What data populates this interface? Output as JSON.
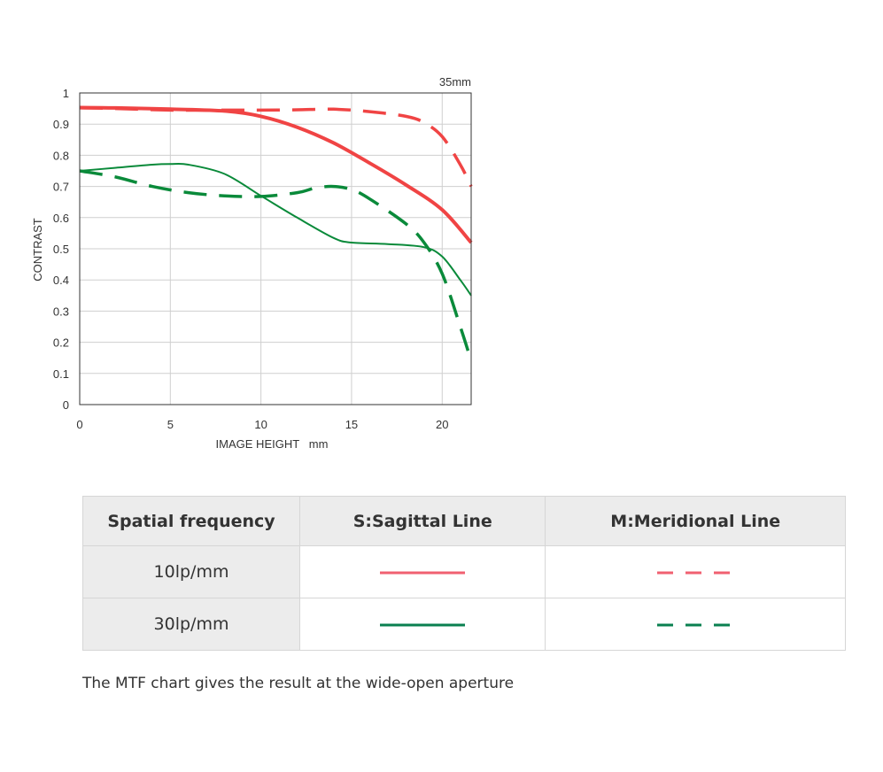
{
  "chart_data": {
    "type": "line",
    "title": "35mm",
    "xlabel": "IMAGE HEIGHT   mm",
    "ylabel": "CONTRAST",
    "xlim": [
      0,
      21.6
    ],
    "ylim": [
      0,
      1
    ],
    "x_ticks": [
      "0",
      "5",
      "10",
      "15",
      "20"
    ],
    "y_ticks": [
      "0",
      "0.1",
      "0.2",
      "0.3",
      "0.4",
      "0.5",
      "0.6",
      "0.7",
      "0.8",
      "0.9",
      "1"
    ],
    "grid": true,
    "series": [
      {
        "name": "10lp/mm S:Sagittal Line",
        "color": "#f04444",
        "dash": false,
        "x": [
          0,
          2,
          5,
          8,
          10,
          12,
          14,
          16,
          18,
          20,
          21.6
        ],
        "y": [
          0.953,
          0.952,
          0.948,
          0.942,
          0.925,
          0.89,
          0.84,
          0.775,
          0.705,
          0.625,
          0.52
        ]
      },
      {
        "name": "10lp/mm M:Meridional Line",
        "color": "#f04444",
        "dash": true,
        "x": [
          0,
          2,
          5,
          8,
          10,
          12,
          14,
          16,
          18,
          19,
          20,
          21,
          21.6
        ],
        "y": [
          0.952,
          0.95,
          0.945,
          0.945,
          0.945,
          0.946,
          0.948,
          0.94,
          0.925,
          0.905,
          0.86,
          0.77,
          0.7
        ]
      },
      {
        "name": "30lp/mm S:Sagittal Line",
        "color": "#0a8a3a",
        "dash": false,
        "x": [
          0,
          2,
          4,
          5,
          6,
          8,
          10,
          12,
          14,
          15,
          17,
          19,
          20,
          21,
          21.6
        ],
        "y": [
          0.75,
          0.76,
          0.77,
          0.772,
          0.77,
          0.74,
          0.67,
          0.6,
          0.535,
          0.52,
          0.515,
          0.505,
          0.475,
          0.4,
          0.35
        ]
      },
      {
        "name": "30lp/mm M:Meridional Line",
        "color": "#0a8a3a",
        "dash": true,
        "x": [
          0,
          2,
          4,
          6,
          8,
          10,
          12,
          13,
          14,
          15,
          16,
          18,
          19,
          20,
          21,
          21.6
        ],
        "y": [
          0.75,
          0.73,
          0.7,
          0.68,
          0.67,
          0.668,
          0.68,
          0.695,
          0.7,
          0.69,
          0.66,
          0.58,
          0.52,
          0.42,
          0.25,
          0.14
        ]
      }
    ]
  },
  "table": {
    "headers": [
      "Spatial frequency",
      "S:Sagittal Line",
      "M:Meridional Line"
    ],
    "rows": [
      {
        "label": "10lp/mm",
        "color": "#f06070"
      },
      {
        "label": "30lp/mm",
        "color": "#0a8050"
      }
    ]
  },
  "caption": "The MTF chart gives the result at the wide-open aperture"
}
